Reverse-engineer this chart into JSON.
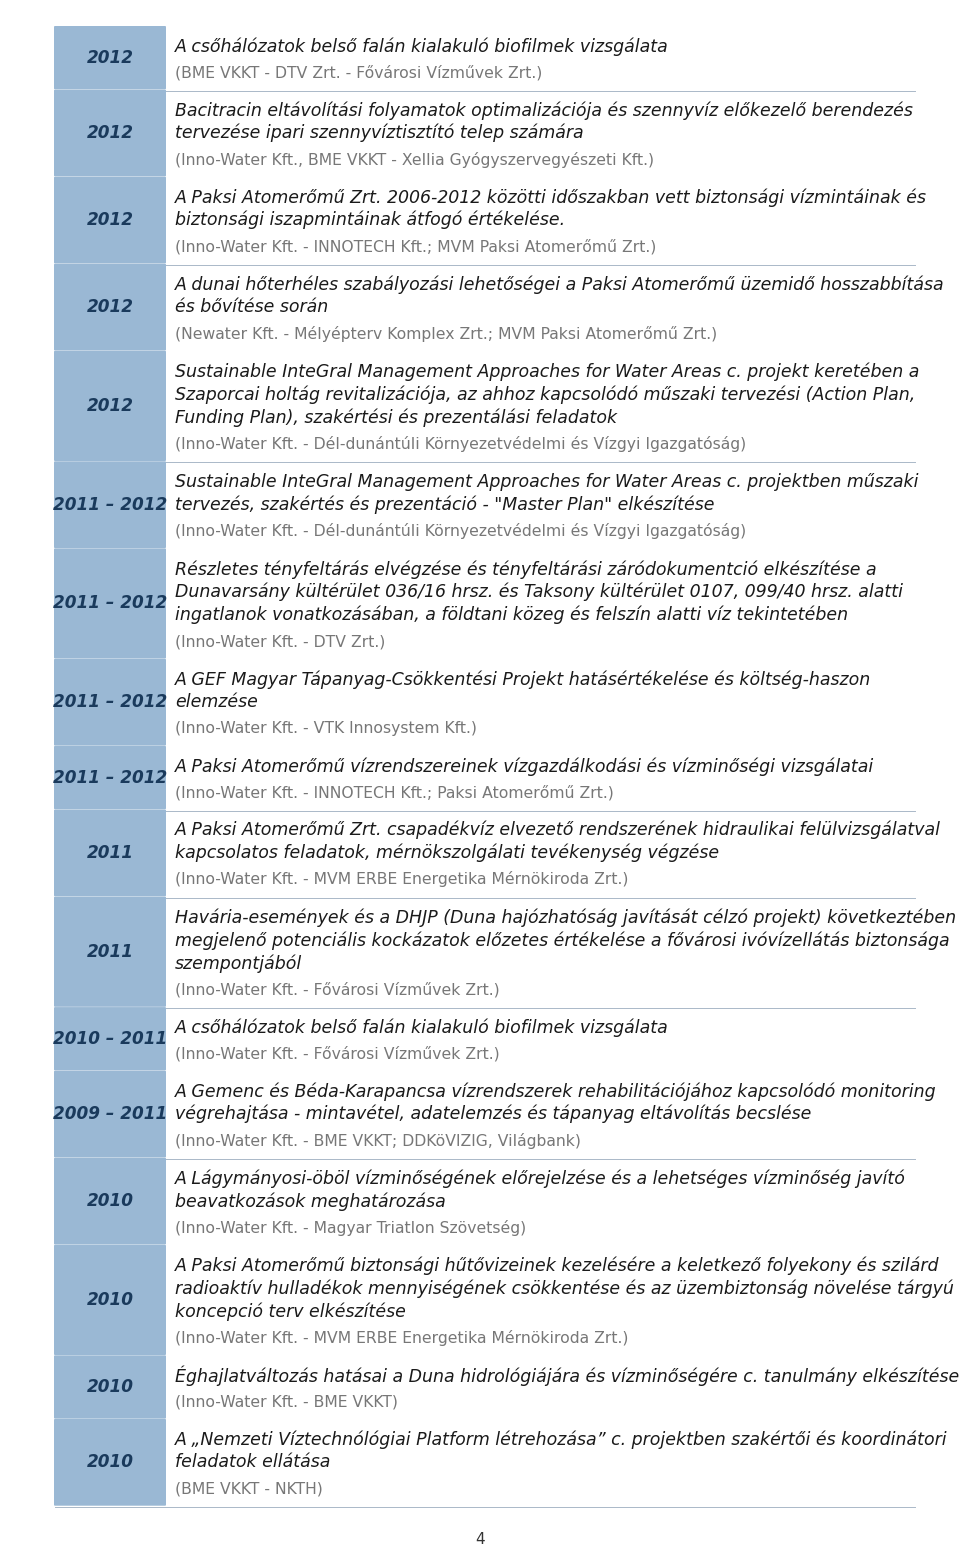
{
  "entries": [
    {
      "year": "2012",
      "title": "A csőhálózatok belső falán kialakuló biofilmek vizsgálata",
      "subtitle": "(BME VKKT - DTV Zrt. - Fővárosi Vízművek Zrt.)",
      "separator_above": false
    },
    {
      "year": "2012",
      "title": "Bacitracin eltávolítási folyamatok optimalizációja és szennyvíz előkezelő berendezés\ntervezése ipari szennyvíztisztító telep számára",
      "subtitle": "(Inno-Water Kft., BME VKKT - Xellia Gyógyszervegyészeti Kft.)",
      "separator_above": true
    },
    {
      "year": "2012",
      "title": "A Paksi Atomerőmű Zrt. 2006-2012 közötti időszakban vett biztonsági vízmintáinak és\nbiztonsági iszapmintáinak átfogó értékelése.",
      "subtitle": "(Inno-Water Kft. - INNOTECH Kft.; MVM Paksi Atomerőmű Zrt.)",
      "separator_above": false
    },
    {
      "year": "2012",
      "title": "A dunai hőterhéles szabályozási lehetőségei a Paksi Atomerőmű üzemidő hosszabbítása\nés bővítése során",
      "subtitle": "(Newater Kft. - Mélyépterv Komplex Zrt.; MVM Paksi Atomerőmű Zrt.)",
      "separator_above": true
    },
    {
      "year": "2012",
      "title": "Sustainable InteGral Management Approaches for Water Areas c. projekt keretében a\nSzaporcai holtág revitalizációja, az ahhoz kapcsolódó műszaki tervezési (Action Plan,\nFunding Plan), szakértési és prezentálási feladatok",
      "subtitle": "(Inno-Water Kft. - Dél-dunántúli Környezetvédelmi és Vízgyi Igazgatóság)",
      "separator_above": false
    },
    {
      "year": "2011 – 2012",
      "title": "Sustainable InteGral Management Approaches for Water Areas c. projektben műszaki\ntervezés, szakértés és prezentáció - \"Master Plan\" elkészítése",
      "subtitle": "(Inno-Water Kft. - Dél-dunántúli Környezetvédelmi és Vízgyi Igazgatóság)",
      "separator_above": true
    },
    {
      "year": "2011 – 2012",
      "title": "Részletes tényfeltárás elvégzése és tényfeltárási záródokumentció elkészítése a\nDunavarsány kültérület 036/16 hrsz. és Taksony kültérület 0107, 099/40 hrsz. alatti\ningatlanok vonatkozásában, a földtani közeg és felszín alatti víz tekintetében",
      "subtitle": "(Inno-Water Kft. - DTV Zrt.)",
      "separator_above": false
    },
    {
      "year": "2011 – 2012",
      "title": "A GEF Magyar Tápanyag-Csökkentési Projekt hatásértékelése és költség-haszon\nelemzése",
      "subtitle": "(Inno-Water Kft. - VTK Innosystem Kft.)",
      "separator_above": false
    },
    {
      "year": "2011 – 2012",
      "title": "A Paksi Atomerőmű vízrendszereinek vízgazdálkodási és vízminőségi vizsgálatai",
      "subtitle": "(Inno-Water Kft. - INNOTECH Kft.; Paksi Atomerőmű Zrt.)",
      "separator_above": false
    },
    {
      "year": "2011",
      "title": "A Paksi Atomerőmű Zrt. csapadékvíz elvezető rendszerének hidraulikai felülvizsgálatval\nkapcsolatos feladatok, mérnökszolgálati tevékenység végzése",
      "subtitle": "(Inno-Water Kft. - MVM ERBE Energetika Mérnökiroda Zrt.)",
      "separator_above": true
    },
    {
      "year": "2011",
      "title": "Havária-események és a DHJP (Duna hajózhatóság javítását célzó projekt) következtében\nmegjelenő potenciális kockázatok előzetes értékelése a fővárosi ivóvízellátás biztonsága\nszempontjából",
      "subtitle": "(Inno-Water Kft. - Fővárosi Vízművek Zrt.)",
      "separator_above": true
    },
    {
      "year": "2010 – 2011",
      "title": "A csőhálózatok belső falán kialakuló biofilmek vizsgálata",
      "subtitle": "(Inno-Water Kft. - Fővárosi Vízművek Zrt.)",
      "separator_above": true
    },
    {
      "year": "2009 – 2011",
      "title": "A Gemenc és Béda-Karapancsa vízrendszerek rehabilitációjához kapcsolódó monitoring\nvégrehajtása - mintavétel, adatelemzés és tápanyag eltávolítás becslése",
      "subtitle": "(Inno-Water Kft. - BME VKKT; DDKöVIZIG, Világbank)",
      "separator_above": false
    },
    {
      "year": "2010",
      "title": "A Lágymányosi-öböl vízminőségének előrejelzése és a lehetséges vízminőség javító\nbeavatkozások meghatározása",
      "subtitle": "(Inno-Water Kft. - Magyar Triatlon Szövetség)",
      "separator_above": true
    },
    {
      "year": "2010",
      "title": "A Paksi Atomerőmű biztonsági hűtővizeinek kezelésére a keletkező folyekony és szilárd\nradioaktív hulladékok mennyiségének csökkentése és az üzembiztonság növelése tárgyú\nkoncepció terv elkészítése",
      "subtitle": "(Inno-Water Kft. - MVM ERBE Energetika Mérnökiroda Zrt.)",
      "separator_above": false
    },
    {
      "year": "2010",
      "title": "Éghajlatváltozás hatásai a Duna hidrológiájára és vízminőségére c. tanulmány elkészítése",
      "subtitle": "(Inno-Water Kft. - BME VKKT)",
      "separator_above": false
    },
    {
      "year": "2010",
      "title": "A „Nemzeti Víztechnólógiai Platform létrehozása” c. projektben szakértői és koordinátori\nfeladatok ellátása",
      "subtitle": "(BME VKKT - NKTH)",
      "separator_above": false
    }
  ],
  "page_number": "4",
  "year_box_color": "#9ab8d4",
  "year_box_text_color": "#1a3a5c",
  "title_color": "#1a1a1a",
  "subtitle_color": "#777777",
  "separator_color": "#aab8c8",
  "background_color": "#ffffff"
}
